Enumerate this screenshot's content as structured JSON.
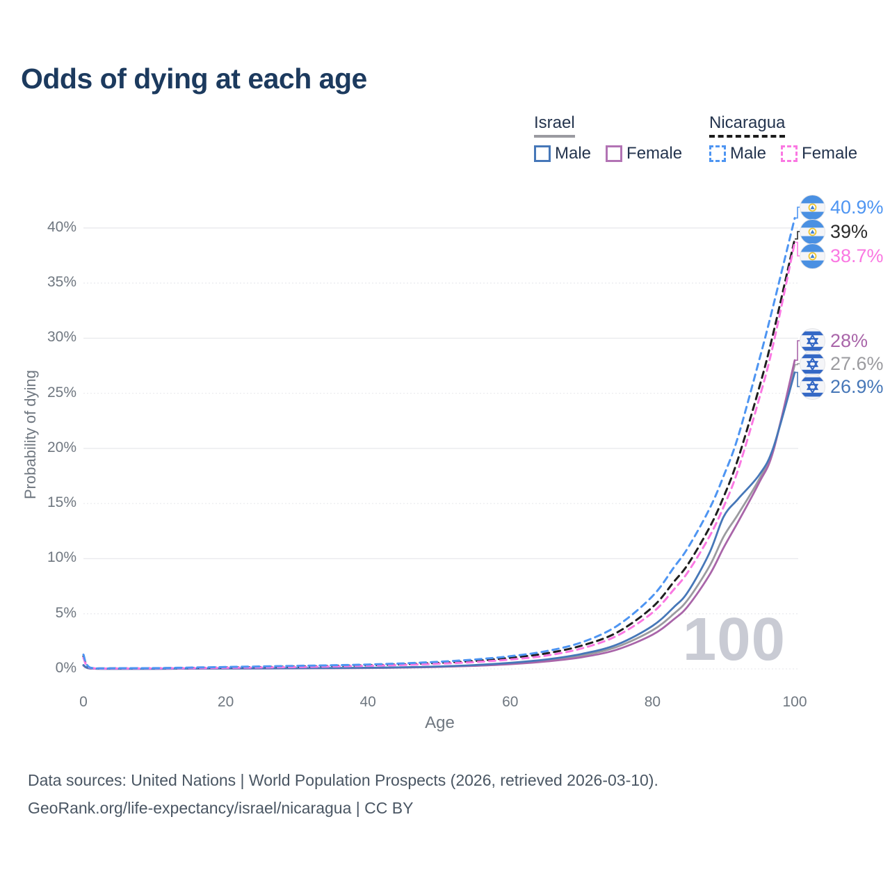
{
  "title": "Odds of dying at each age",
  "watermark_age": "100",
  "legend": {
    "israel": {
      "label": "Israel",
      "male": "Male",
      "female": "Female"
    },
    "nicaragua": {
      "label": "Nicaragua",
      "male": "Male",
      "female": "Female"
    }
  },
  "footer": {
    "line1": "Data sources: United Nations | World Population Prospects (2026, retrieved 2026-03-10).",
    "line2": "GeoRank.org/life-expectancy/israel/nicaragua | CC BY"
  },
  "colors": {
    "title_text": "#1c3a5e",
    "axis_text": "#6f7780",
    "israel_male": "#4677b8",
    "israel_female": "#a965a9",
    "israel_both": "#9b9b9f",
    "nicaragua_male": "#4e95f2",
    "nicaragua_female": "#fa78e2",
    "nicaragua_both": "#1f1f1f",
    "gridline": "#e9eaee",
    "watermark": "#c9cbd4"
  },
  "chart_data": {
    "type": "line",
    "title": "Odds of dying at each age",
    "xlabel": "Age",
    "ylabel": "Probability of dying",
    "xlim": [
      0,
      100
    ],
    "ylim": [
      0,
      42.5
    ],
    "grid": "horizontal-only",
    "legend_position": "top-right",
    "x_ticks": [
      0,
      20,
      40,
      60,
      80,
      100
    ],
    "y_ticks": [
      0,
      5,
      10,
      15,
      20,
      25,
      30,
      35,
      40
    ],
    "y_tick_suffix": "%",
    "x": [
      0,
      1,
      5,
      10,
      15,
      20,
      25,
      30,
      35,
      40,
      45,
      50,
      55,
      60,
      65,
      70,
      75,
      80,
      83,
      85,
      88,
      90,
      92,
      95,
      97,
      100
    ],
    "series": [
      {
        "name": "Israel Both",
        "key": "israel_both",
        "country": "Israel",
        "sex": "both",
        "color": "#9b9b9f",
        "dash": "solid",
        "values": [
          0.32,
          0.04,
          0.01,
          0.01,
          0.03,
          0.04,
          0.05,
          0.06,
          0.07,
          0.09,
          0.13,
          0.2,
          0.31,
          0.48,
          0.75,
          1.2,
          2.0,
          3.5,
          5.0,
          6.3,
          9.3,
          12.0,
          14.0,
          17.2,
          20.0,
          27.6
        ]
      },
      {
        "name": "Israel Female",
        "key": "israel_female",
        "country": "Israel",
        "sex": "female",
        "color": "#a965a9",
        "dash": "solid",
        "values": [
          0.3,
          0.03,
          0.01,
          0.01,
          0.02,
          0.03,
          0.04,
          0.05,
          0.06,
          0.08,
          0.12,
          0.18,
          0.28,
          0.43,
          0.67,
          1.05,
          1.75,
          3.1,
          4.5,
          5.7,
          8.5,
          11.0,
          13.3,
          16.9,
          19.8,
          28.0
        ]
      },
      {
        "name": "Israel Male",
        "key": "israel_male",
        "country": "Israel",
        "sex": "male",
        "color": "#4677b8",
        "dash": "solid",
        "values": [
          0.35,
          0.04,
          0.01,
          0.01,
          0.03,
          0.05,
          0.05,
          0.06,
          0.08,
          0.1,
          0.15,
          0.22,
          0.35,
          0.55,
          0.85,
          1.35,
          2.2,
          3.9,
          5.6,
          7.0,
          10.5,
          13.8,
          15.4,
          17.6,
          20.1,
          26.9
        ]
      },
      {
        "name": "Nicaragua Both",
        "key": "nicaragua_both",
        "country": "Nicaragua",
        "sex": "both",
        "color": "#1f1f1f",
        "dash": "dashed",
        "values": [
          1.15,
          0.09,
          0.05,
          0.06,
          0.09,
          0.13,
          0.17,
          0.22,
          0.27,
          0.33,
          0.42,
          0.55,
          0.72,
          1.0,
          1.4,
          2.1,
          3.3,
          5.6,
          7.9,
          9.5,
          12.8,
          15.6,
          19.0,
          25.5,
          30.5,
          39.0
        ]
      },
      {
        "name": "Nicaragua Female",
        "key": "nicaragua_female",
        "country": "Nicaragua",
        "sex": "female",
        "color": "#fa78e2",
        "dash": "dashed",
        "values": [
          1.0,
          0.08,
          0.04,
          0.05,
          0.07,
          0.1,
          0.13,
          0.17,
          0.22,
          0.28,
          0.36,
          0.47,
          0.62,
          0.85,
          1.2,
          1.85,
          3.0,
          5.1,
          7.2,
          8.8,
          12.0,
          14.7,
          18.0,
          24.5,
          29.5,
          38.7
        ]
      },
      {
        "name": "Nicaragua Male",
        "key": "nicaragua_male",
        "country": "Nicaragua",
        "sex": "male",
        "color": "#4e95f2",
        "dash": "dashed",
        "values": [
          1.3,
          0.1,
          0.06,
          0.07,
          0.12,
          0.17,
          0.22,
          0.28,
          0.33,
          0.4,
          0.5,
          0.65,
          0.85,
          1.15,
          1.6,
          2.4,
          3.9,
          6.6,
          9.2,
          11.0,
          14.5,
          17.5,
          21.0,
          28.0,
          33.0,
          40.9
        ]
      }
    ],
    "end_labels": [
      {
        "text": "40.9%",
        "value": 40.9,
        "series": "nicaragua_male",
        "flag": "nicaragua",
        "color": "#4e95f2"
      },
      {
        "text": "39%",
        "value": 39.0,
        "series": "nicaragua_both",
        "flag": "nicaragua",
        "color": "#2b2b2b"
      },
      {
        "text": "38.7%",
        "value": 38.7,
        "series": "nicaragua_female",
        "flag": "nicaragua",
        "color": "#fa78e2"
      },
      {
        "text": "28%",
        "value": 28.0,
        "series": "israel_female",
        "flag": "israel",
        "color": "#a965a9"
      },
      {
        "text": "27.6%",
        "value": 27.6,
        "series": "israel_both",
        "flag": "israel",
        "color": "#9b9b9f"
      },
      {
        "text": "26.9%",
        "value": 26.9,
        "series": "israel_male",
        "flag": "israel",
        "color": "#4677b8"
      }
    ]
  }
}
